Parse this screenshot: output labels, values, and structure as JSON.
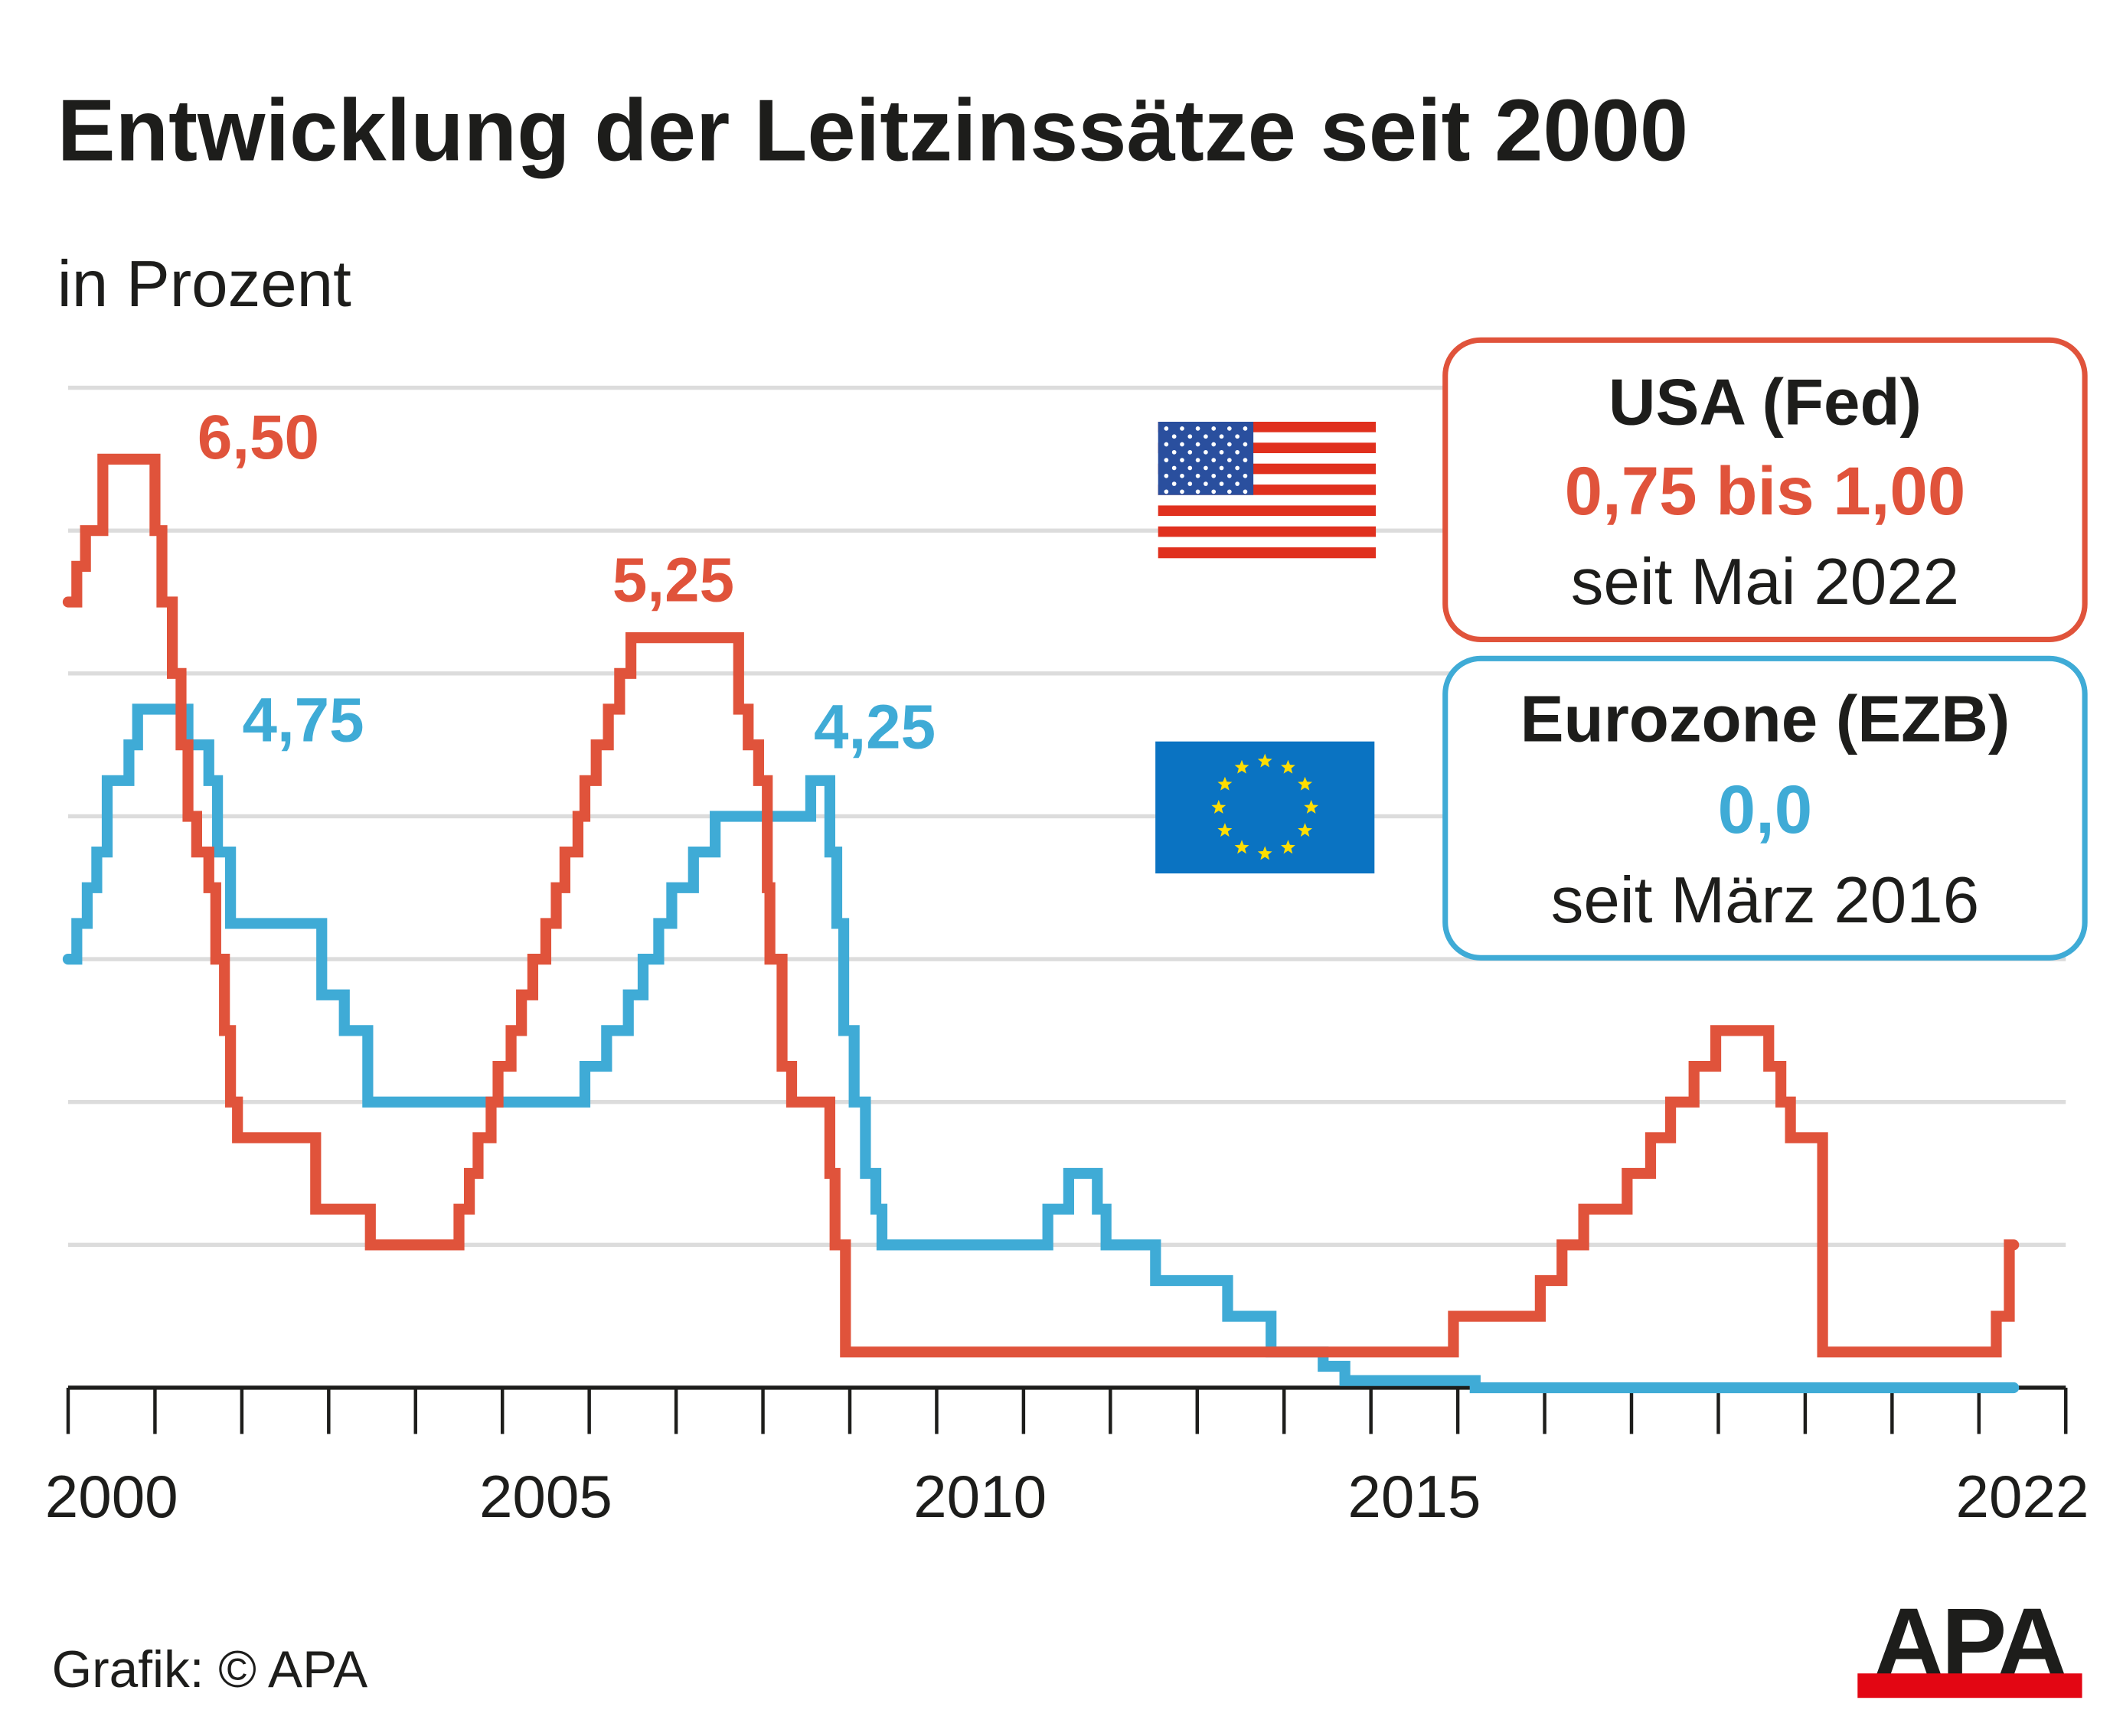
{
  "colors": {
    "fed": "#e0533b",
    "ecb": "#3fabd6",
    "grid": "#dcdcdc",
    "text": "#1d1d1b",
    "apa_red": "#e30613"
  },
  "chart_data": {
    "type": "line",
    "step": true,
    "title": "Entwicklung der Leitzinssätze seit 2000",
    "subtitle": "in Prozent",
    "xlim": [
      2000,
      2023
    ],
    "ylim": [
      0,
      7
    ],
    "grid": true,
    "x_tick_labels": [
      {
        "year": 2000,
        "label": "2000"
      },
      {
        "year": 2005,
        "label": "2005"
      },
      {
        "year": 2010,
        "label": "2010"
      },
      {
        "year": 2015,
        "label": "2015"
      },
      {
        "year": 2022,
        "label": "2022"
      }
    ],
    "series": [
      {
        "name": "USA (Fed)",
        "color": "#e0533b",
        "end": 2022.4,
        "points": [
          [
            2000.0,
            5.5
          ],
          [
            2000.1,
            5.75
          ],
          [
            2000.2,
            6.0
          ],
          [
            2000.4,
            6.5
          ],
          [
            2001.0,
            6.0
          ],
          [
            2001.08,
            5.5
          ],
          [
            2001.2,
            5.0
          ],
          [
            2001.3,
            4.5
          ],
          [
            2001.38,
            4.0
          ],
          [
            2001.48,
            3.75
          ],
          [
            2001.62,
            3.5
          ],
          [
            2001.7,
            3.0
          ],
          [
            2001.8,
            2.5
          ],
          [
            2001.87,
            2.0
          ],
          [
            2001.95,
            1.75
          ],
          [
            2002.85,
            1.25
          ],
          [
            2003.48,
            1.0
          ],
          [
            2004.5,
            1.25
          ],
          [
            2004.62,
            1.5
          ],
          [
            2004.72,
            1.75
          ],
          [
            2004.87,
            2.0
          ],
          [
            2004.95,
            2.25
          ],
          [
            2005.1,
            2.5
          ],
          [
            2005.22,
            2.75
          ],
          [
            2005.35,
            3.0
          ],
          [
            2005.5,
            3.25
          ],
          [
            2005.62,
            3.5
          ],
          [
            2005.72,
            3.75
          ],
          [
            2005.87,
            4.0
          ],
          [
            2005.95,
            4.25
          ],
          [
            2006.08,
            4.5
          ],
          [
            2006.22,
            4.75
          ],
          [
            2006.35,
            5.0
          ],
          [
            2006.48,
            5.25
          ],
          [
            2007.72,
            4.75
          ],
          [
            2007.83,
            4.5
          ],
          [
            2007.95,
            4.25
          ],
          [
            2008.05,
            3.5
          ],
          [
            2008.08,
            3.0
          ],
          [
            2008.22,
            2.25
          ],
          [
            2008.33,
            2.0
          ],
          [
            2008.77,
            1.5
          ],
          [
            2008.83,
            1.0
          ],
          [
            2008.95,
            0.25
          ],
          [
            2015.95,
            0.5
          ],
          [
            2016.95,
            0.75
          ],
          [
            2017.2,
            1.0
          ],
          [
            2017.45,
            1.25
          ],
          [
            2017.95,
            1.5
          ],
          [
            2018.22,
            1.75
          ],
          [
            2018.45,
            2.0
          ],
          [
            2018.72,
            2.25
          ],
          [
            2018.97,
            2.5
          ],
          [
            2019.58,
            2.25
          ],
          [
            2019.72,
            2.0
          ],
          [
            2019.83,
            1.75
          ],
          [
            2020.2,
            0.25
          ],
          [
            2022.2,
            0.5
          ],
          [
            2022.35,
            1.0
          ]
        ],
        "data_label": "6,50"
      },
      {
        "name": "Eurozone (EZB)",
        "color": "#3fabd6",
        "end": 2022.4,
        "points": [
          [
            2000.0,
            3.0
          ],
          [
            2000.1,
            3.25
          ],
          [
            2000.22,
            3.5
          ],
          [
            2000.33,
            3.75
          ],
          [
            2000.45,
            4.25
          ],
          [
            2000.7,
            4.5
          ],
          [
            2000.8,
            4.75
          ],
          [
            2001.38,
            4.5
          ],
          [
            2001.62,
            4.25
          ],
          [
            2001.72,
            3.75
          ],
          [
            2001.87,
            3.25
          ],
          [
            2002.92,
            2.75
          ],
          [
            2003.18,
            2.5
          ],
          [
            2003.45,
            2.0
          ],
          [
            2005.95,
            2.25
          ],
          [
            2006.2,
            2.5
          ],
          [
            2006.45,
            2.75
          ],
          [
            2006.62,
            3.0
          ],
          [
            2006.8,
            3.25
          ],
          [
            2006.95,
            3.5
          ],
          [
            2007.2,
            3.75
          ],
          [
            2007.45,
            4.0
          ],
          [
            2008.55,
            4.25
          ],
          [
            2008.77,
            3.75
          ],
          [
            2008.85,
            3.25
          ],
          [
            2008.93,
            2.5
          ],
          [
            2009.05,
            2.0
          ],
          [
            2009.18,
            1.5
          ],
          [
            2009.3,
            1.25
          ],
          [
            2009.37,
            1.0
          ],
          [
            2011.28,
            1.25
          ],
          [
            2011.52,
            1.5
          ],
          [
            2011.85,
            1.25
          ],
          [
            2011.95,
            1.0
          ],
          [
            2012.52,
            0.75
          ],
          [
            2013.35,
            0.5
          ],
          [
            2013.85,
            0.25
          ],
          [
            2014.45,
            0.15
          ],
          [
            2014.7,
            0.05
          ],
          [
            2016.2,
            0.0
          ]
        ],
        "data_label": "4,75"
      }
    ],
    "annotations": [
      {
        "text": "6,50",
        "series": "USA (Fed)",
        "year": 2000.4,
        "value": 6.5
      },
      {
        "text": "5,25",
        "series": "USA (Fed)",
        "year": 2006.48,
        "value": 5.25
      },
      {
        "text": "4,75",
        "series": "Eurozone (EZB)",
        "year": 2000.8,
        "value": 4.75
      },
      {
        "text": "4,25",
        "series": "Eurozone (EZB)",
        "year": 2008.55,
        "value": 4.25
      }
    ]
  },
  "legend": {
    "fed": {
      "heading": "USA (Fed)",
      "value": "0,75 bis 1,00",
      "since": "seit Mai 2022",
      "flag": "us-flag-icon"
    },
    "ecb": {
      "heading": "Eurozone (EZB)",
      "value": "0,0",
      "since": "seit März 2016",
      "flag": "eu-flag-icon"
    }
  },
  "footer": {
    "credit": "Grafik: © APA",
    "logo": "APA"
  }
}
